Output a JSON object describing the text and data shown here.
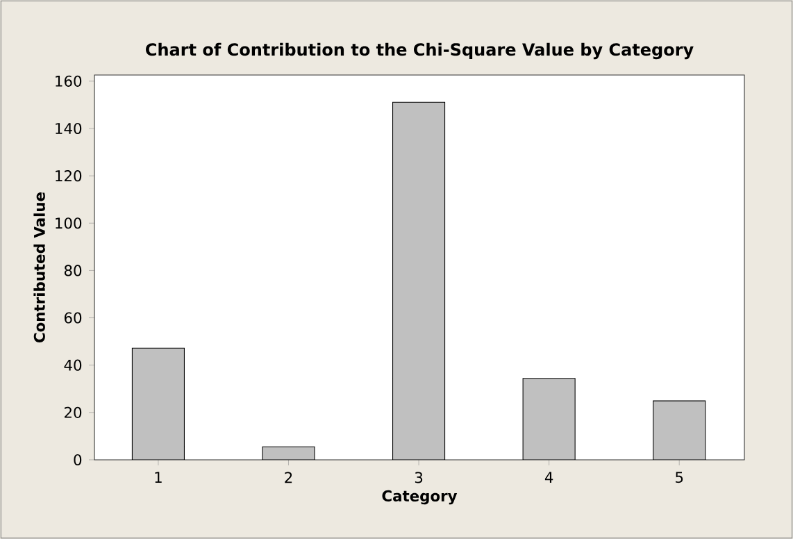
{
  "chart_data": {
    "type": "bar",
    "title": "Chart of Contribution to the Chi-Square Value by Category",
    "xlabel": "Category",
    "ylabel": "Contributed Value",
    "categories": [
      "1",
      "2",
      "3",
      "4",
      "5"
    ],
    "values": [
      47.2,
      5.5,
      151.1,
      34.4,
      24.9
    ],
    "color": "#c0c0c0",
    "ylim": [
      0,
      162.6
    ],
    "yticks": [
      0,
      20,
      40,
      60,
      80,
      100,
      120,
      140,
      160
    ]
  }
}
